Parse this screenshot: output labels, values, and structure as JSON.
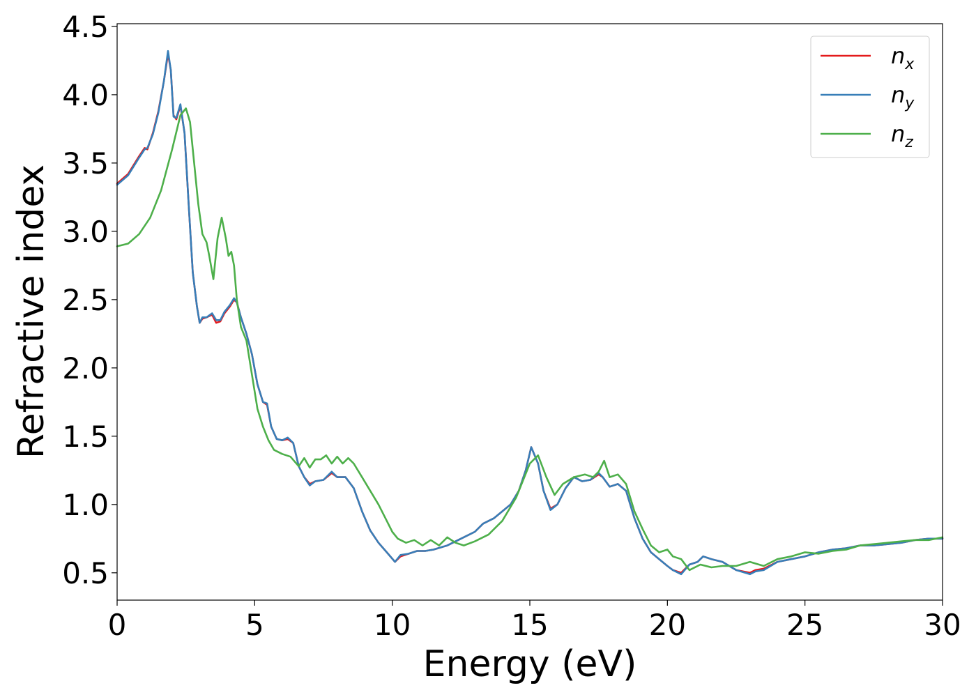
{
  "chart_data": {
    "type": "line",
    "xlabel": "Energy (eV)",
    "ylabel": "Refractive index",
    "xlim": [
      0,
      30
    ],
    "ylim": [
      0.3,
      4.52
    ],
    "xticks": [
      "0",
      "5",
      "10",
      "15",
      "20",
      "25",
      "30"
    ],
    "yticks": [
      "0.5",
      "1.0",
      "1.5",
      "2.0",
      "2.5",
      "3.0",
      "3.5",
      "4.0",
      "4.5"
    ],
    "grid": false,
    "legend_position": "top-right",
    "series": [
      {
        "name": "n_x",
        "label_base": "n",
        "label_sub": "x",
        "color": "#e41a1c",
        "x": [
          0,
          0.4,
          0.8,
          1.0,
          1.1,
          1.3,
          1.5,
          1.7,
          1.85,
          1.95,
          2.05,
          2.15,
          2.3,
          2.45,
          2.6,
          2.75,
          2.9,
          3.0,
          3.1,
          3.25,
          3.45,
          3.6,
          3.75,
          3.9,
          4.1,
          4.25,
          4.35,
          4.5,
          4.7,
          4.9,
          5.1,
          5.3,
          5.45,
          5.6,
          5.8,
          6.0,
          6.2,
          6.4,
          6.6,
          6.8,
          7.0,
          7.2,
          7.5,
          7.8,
          8.0,
          8.3,
          8.6,
          8.9,
          9.2,
          9.5,
          9.8,
          10.1,
          10.3,
          10.6,
          10.9,
          11.2,
          11.5,
          12.0,
          12.5,
          13.0,
          13.3,
          13.7,
          14.0,
          14.3,
          14.6,
          14.85,
          15.05,
          15.3,
          15.5,
          15.75,
          16.0,
          16.3,
          16.6,
          16.9,
          17.2,
          17.5,
          17.65,
          17.9,
          18.2,
          18.5,
          18.8,
          19.1,
          19.4,
          19.7,
          20.0,
          20.2,
          20.5,
          20.8,
          21.1,
          21.3,
          21.6,
          22.0,
          22.5,
          23.0,
          23.2,
          23.5,
          24.0,
          24.5,
          25.0,
          25.5,
          26.0,
          26.5,
          27.0,
          27.5,
          28.0,
          28.5,
          29.0,
          29.5,
          30.0
        ],
        "values": [
          3.35,
          3.42,
          3.55,
          3.61,
          3.6,
          3.72,
          3.88,
          4.1,
          4.3,
          4.18,
          3.85,
          3.82,
          3.92,
          3.72,
          3.2,
          2.7,
          2.45,
          2.33,
          2.36,
          2.37,
          2.39,
          2.33,
          2.34,
          2.4,
          2.45,
          2.5,
          2.48,
          2.37,
          2.25,
          2.1,
          1.88,
          1.75,
          1.73,
          1.57,
          1.48,
          1.47,
          1.48,
          1.45,
          1.28,
          1.2,
          1.15,
          1.17,
          1.18,
          1.23,
          1.2,
          1.2,
          1.12,
          0.95,
          0.81,
          0.72,
          0.65,
          0.58,
          0.62,
          0.64,
          0.66,
          0.66,
          0.67,
          0.7,
          0.75,
          0.8,
          0.86,
          0.9,
          0.95,
          1.0,
          1.1,
          1.25,
          1.42,
          1.3,
          1.1,
          0.97,
          1.0,
          1.12,
          1.2,
          1.17,
          1.18,
          1.22,
          1.2,
          1.13,
          1.15,
          1.1,
          0.9,
          0.75,
          0.65,
          0.6,
          0.55,
          0.52,
          0.5,
          0.56,
          0.58,
          0.62,
          0.6,
          0.58,
          0.52,
          0.5,
          0.52,
          0.53,
          0.58,
          0.6,
          0.62,
          0.65,
          0.67,
          0.68,
          0.7,
          0.7,
          0.71,
          0.72,
          0.74,
          0.75,
          0.75
        ]
      },
      {
        "name": "n_y",
        "label_base": "n",
        "label_sub": "y",
        "color": "#377eb8",
        "x": [
          0,
          0.4,
          0.8,
          1.0,
          1.1,
          1.3,
          1.5,
          1.7,
          1.85,
          1.95,
          2.05,
          2.15,
          2.3,
          2.45,
          2.6,
          2.75,
          2.9,
          3.0,
          3.1,
          3.25,
          3.45,
          3.6,
          3.75,
          3.9,
          4.1,
          4.25,
          4.35,
          4.5,
          4.7,
          4.9,
          5.1,
          5.3,
          5.45,
          5.6,
          5.8,
          6.0,
          6.2,
          6.4,
          6.6,
          6.8,
          7.0,
          7.2,
          7.5,
          7.8,
          8.0,
          8.3,
          8.6,
          8.9,
          9.2,
          9.5,
          9.8,
          10.1,
          10.3,
          10.6,
          10.9,
          11.2,
          11.5,
          12.0,
          12.5,
          13.0,
          13.3,
          13.7,
          14.0,
          14.3,
          14.6,
          14.85,
          15.05,
          15.3,
          15.5,
          15.75,
          16.0,
          16.3,
          16.6,
          16.9,
          17.2,
          17.5,
          17.65,
          17.9,
          18.2,
          18.5,
          18.8,
          19.1,
          19.4,
          19.7,
          20.0,
          20.2,
          20.5,
          20.8,
          21.1,
          21.3,
          21.6,
          22.0,
          22.5,
          23.0,
          23.2,
          23.5,
          24.0,
          24.5,
          25.0,
          25.5,
          26.0,
          26.5,
          27.0,
          27.5,
          28.0,
          28.5,
          29.0,
          29.5,
          30.0
        ],
        "values": [
          3.34,
          3.41,
          3.54,
          3.6,
          3.61,
          3.71,
          3.87,
          4.1,
          4.32,
          4.18,
          3.84,
          3.83,
          3.93,
          3.72,
          3.2,
          2.7,
          2.45,
          2.33,
          2.37,
          2.37,
          2.4,
          2.35,
          2.35,
          2.41,
          2.46,
          2.51,
          2.48,
          2.37,
          2.25,
          2.1,
          1.88,
          1.75,
          1.74,
          1.57,
          1.48,
          1.47,
          1.49,
          1.45,
          1.28,
          1.2,
          1.14,
          1.17,
          1.18,
          1.24,
          1.2,
          1.2,
          1.12,
          0.95,
          0.81,
          0.72,
          0.65,
          0.58,
          0.63,
          0.64,
          0.66,
          0.66,
          0.67,
          0.7,
          0.75,
          0.8,
          0.86,
          0.9,
          0.95,
          1.0,
          1.1,
          1.25,
          1.42,
          1.3,
          1.1,
          0.96,
          1.0,
          1.12,
          1.2,
          1.17,
          1.18,
          1.23,
          1.2,
          1.13,
          1.15,
          1.1,
          0.9,
          0.75,
          0.65,
          0.6,
          0.55,
          0.52,
          0.49,
          0.56,
          0.58,
          0.62,
          0.6,
          0.58,
          0.52,
          0.49,
          0.51,
          0.52,
          0.58,
          0.6,
          0.62,
          0.65,
          0.67,
          0.68,
          0.7,
          0.7,
          0.71,
          0.72,
          0.74,
          0.75,
          0.75
        ]
      },
      {
        "name": "n_z",
        "label_base": "n",
        "label_sub": "z",
        "color": "#4daf4a",
        "x": [
          0,
          0.4,
          0.8,
          1.2,
          1.6,
          2.0,
          2.3,
          2.5,
          2.65,
          2.8,
          2.95,
          3.1,
          3.25,
          3.35,
          3.5,
          3.65,
          3.8,
          3.95,
          4.05,
          4.15,
          4.25,
          4.35,
          4.5,
          4.7,
          4.9,
          5.1,
          5.3,
          5.5,
          5.7,
          6.0,
          6.3,
          6.6,
          6.8,
          7.0,
          7.2,
          7.4,
          7.6,
          7.8,
          8.0,
          8.2,
          8.4,
          8.6,
          8.9,
          9.2,
          9.5,
          9.8,
          10.0,
          10.2,
          10.5,
          10.8,
          11.1,
          11.4,
          11.7,
          12.0,
          12.3,
          12.6,
          13.0,
          13.5,
          14.0,
          14.5,
          15.0,
          15.3,
          15.6,
          15.9,
          16.2,
          16.6,
          17.0,
          17.3,
          17.5,
          17.7,
          17.9,
          18.2,
          18.5,
          18.8,
          19.1,
          19.4,
          19.7,
          20.0,
          20.2,
          20.5,
          20.8,
          21.2,
          21.6,
          22.0,
          22.5,
          23.0,
          23.5,
          24.0,
          24.5,
          25.0,
          25.5,
          26.0,
          26.5,
          27.0,
          27.5,
          28.0,
          28.5,
          29.0,
          29.5,
          30.0
        ],
        "values": [
          2.89,
          2.91,
          2.98,
          3.1,
          3.3,
          3.6,
          3.85,
          3.9,
          3.8,
          3.5,
          3.2,
          2.98,
          2.92,
          2.82,
          2.65,
          2.95,
          3.1,
          2.95,
          2.82,
          2.85,
          2.75,
          2.5,
          2.3,
          2.2,
          1.95,
          1.7,
          1.57,
          1.47,
          1.4,
          1.37,
          1.35,
          1.28,
          1.34,
          1.27,
          1.33,
          1.33,
          1.36,
          1.3,
          1.35,
          1.3,
          1.34,
          1.3,
          1.2,
          1.1,
          1.0,
          0.88,
          0.8,
          0.75,
          0.72,
          0.74,
          0.7,
          0.74,
          0.7,
          0.76,
          0.72,
          0.7,
          0.73,
          0.78,
          0.88,
          1.05,
          1.3,
          1.36,
          1.2,
          1.07,
          1.15,
          1.2,
          1.22,
          1.2,
          1.24,
          1.32,
          1.2,
          1.22,
          1.15,
          0.95,
          0.82,
          0.7,
          0.65,
          0.67,
          0.62,
          0.6,
          0.52,
          0.56,
          0.54,
          0.55,
          0.55,
          0.58,
          0.55,
          0.6,
          0.62,
          0.65,
          0.64,
          0.66,
          0.67,
          0.7,
          0.71,
          0.72,
          0.73,
          0.74,
          0.74,
          0.76
        ]
      }
    ]
  }
}
